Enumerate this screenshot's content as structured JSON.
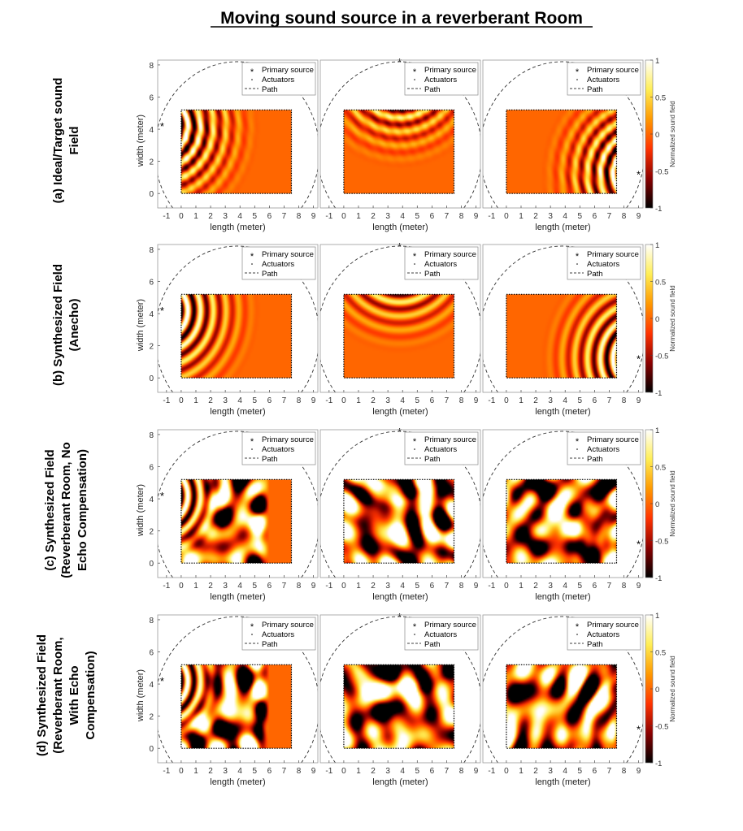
{
  "figure": {
    "title": "Moving sound source in a reverberant Room"
  },
  "rows": [
    {
      "label_lines": [
        "(a)  Ideal/Target sound",
        "Field"
      ]
    },
    {
      "label_lines": [
        "(b)  Synthesized Field",
        "(Anecho)"
      ]
    },
    {
      "label_lines": [
        "(c)  Synthesized Field",
        "(Reverberant Room, No",
        "Echo Compensation)"
      ]
    },
    {
      "label_lines": [
        "(d)  Synthesized Field",
        "(Reverberant Room,",
        "With Echo",
        "Compensation)"
      ]
    }
  ],
  "colorbar": {
    "label": "Normalized sound field",
    "ticks": [
      "1",
      "0.5",
      "0",
      "-0.5",
      "-1"
    ],
    "colors": [
      "#000000",
      "#8b0000",
      "#ff3300",
      "#ff9900",
      "#ffee55",
      "#ffffff"
    ]
  },
  "chart_data": {
    "type": "heatmap",
    "title": "Moving sound source in a reverberant Room",
    "xlabel": "length (meter)",
    "ylabel": "width (meter)",
    "xlim": [
      -1.6,
      9.3
    ],
    "ylim": [
      -0.9,
      8.3
    ],
    "xticks": [
      "-1",
      "0",
      "1",
      "2",
      "3",
      "4",
      "5",
      "6",
      "7",
      "8",
      "9"
    ],
    "yticks": [
      "0",
      "2",
      "4",
      "6",
      "8"
    ],
    "room": {
      "x": [
        0,
        7.5
      ],
      "y": [
        0,
        5.2
      ]
    },
    "clim": [
      -1,
      1
    ],
    "path_center": [
      3.8,
      2.6
    ],
    "path_radius": 5.6,
    "legend": [
      "Primary source",
      "Actuators",
      "Path"
    ],
    "legend_position": "top-right",
    "source_positions": [
      [
        -1.3,
        4.2
      ],
      [
        3.8,
        8.2
      ],
      [
        9.0,
        1.2
      ]
    ],
    "panels": [
      {
        "row": "a",
        "col": 1,
        "source": [
          -1.3,
          4.2
        ],
        "field": "target"
      },
      {
        "row": "a",
        "col": 2,
        "source": [
          3.8,
          8.2
        ],
        "field": "target"
      },
      {
        "row": "a",
        "col": 3,
        "source": [
          9.0,
          1.2
        ],
        "field": "target"
      },
      {
        "row": "b",
        "col": 1,
        "source": [
          -1.3,
          4.2
        ],
        "field": "anechoic"
      },
      {
        "row": "b",
        "col": 2,
        "source": [
          3.8,
          8.2
        ],
        "field": "anechoic"
      },
      {
        "row": "b",
        "col": 3,
        "source": [
          9.0,
          1.2
        ],
        "field": "anechoic"
      },
      {
        "row": "c",
        "col": 1,
        "source": [
          -1.3,
          4.2
        ],
        "field": "reverberant-no-compensation"
      },
      {
        "row": "c",
        "col": 2,
        "source": [
          3.8,
          8.2
        ],
        "field": "reverberant-no-compensation"
      },
      {
        "row": "c",
        "col": 3,
        "source": [
          9.0,
          1.2
        ],
        "field": "reverberant-no-compensation"
      },
      {
        "row": "d",
        "col": 1,
        "source": [
          -1.3,
          4.2
        ],
        "field": "reverberant-with-compensation"
      },
      {
        "row": "d",
        "col": 2,
        "source": [
          3.8,
          8.2
        ],
        "field": "reverberant-with-compensation"
      },
      {
        "row": "d",
        "col": 3,
        "source": [
          9.0,
          1.2
        ],
        "field": "reverberant-with-compensation"
      }
    ]
  }
}
